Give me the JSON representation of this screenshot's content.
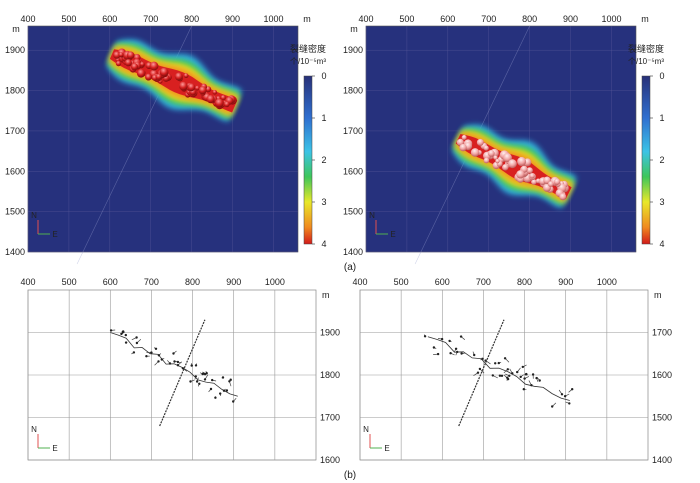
{
  "figure": {
    "caption_a": "(a)",
    "caption_b": "(b)",
    "compass_n": "N",
    "compass_e": "E",
    "unit": "m",
    "colorbar_title_line1": "裂缝密度",
    "colorbar_title_line2": "个/10⁻⁵m³"
  },
  "colors": {
    "background_field": "#26317d",
    "cluster_core": "#d82020",
    "cluster_core_light": "#f2b0b0",
    "halo_yellow": "#f4e21a",
    "halo_green": "#35c45a",
    "halo_cyan": "#35b8e8",
    "grid_line": "#5a5a9a",
    "trace_line": "#333333"
  },
  "chart_data": [
    {
      "id": "a-left",
      "type": "heatmap",
      "x_ticks": [
        "400",
        "500",
        "600",
        "700",
        "800",
        "900",
        "1000"
      ],
      "y_ticks": [
        "1900",
        "1800",
        "1700",
        "1600",
        "1500",
        "1400"
      ],
      "xlim": [
        400,
        1060
      ],
      "ylim": [
        1400,
        1960
      ],
      "colorbar": {
        "ticks": [
          "0",
          "1",
          "2",
          "3",
          "4"
        ],
        "range": [
          0,
          4
        ]
      },
      "cluster": {
        "from": [
          605,
          1890
        ],
        "to": [
          905,
          1760
        ],
        "peak_density": 4
      }
    },
    {
      "id": "a-right",
      "type": "heatmap",
      "x_ticks": [
        "400",
        "500",
        "600",
        "700",
        "800",
        "900",
        "1000"
      ],
      "y_ticks": [
        "1900",
        "1800",
        "1700",
        "1600",
        "1500",
        "1400"
      ],
      "xlim": [
        400,
        1060
      ],
      "ylim": [
        1400,
        1960
      ],
      "colorbar": {
        "ticks": [
          "0",
          "1",
          "2",
          "3",
          "4"
        ],
        "range": [
          0,
          4
        ]
      },
      "cluster": {
        "from": [
          625,
          1680
        ],
        "to": [
          895,
          1545
        ],
        "peak_density": 4
      }
    },
    {
      "id": "b-left",
      "type": "scatter",
      "x_ticks": [
        "400",
        "500",
        "600",
        "700",
        "800",
        "900",
        "1000"
      ],
      "y_ticks": [
        "1900",
        "1800",
        "1700",
        "1600"
      ],
      "xlim": [
        400,
        1100
      ],
      "ylim": [
        1600,
        2000
      ],
      "trend_line": {
        "from": [
          600,
          1900
        ],
        "to": [
          910,
          1750
        ]
      },
      "well_line": {
        "from": [
          720,
          1680
        ],
        "to": [
          830,
          1930
        ]
      }
    },
    {
      "id": "b-right",
      "type": "scatter",
      "x_ticks": [
        "400",
        "500",
        "600",
        "700",
        "800",
        "900",
        "1000"
      ],
      "y_ticks": [
        "1700",
        "1600",
        "1500",
        "1400"
      ],
      "xlim": [
        400,
        1100
      ],
      "ylim": [
        1400,
        1800
      ],
      "trend_line": {
        "from": [
          565,
          1690
        ],
        "to": [
          910,
          1540
        ]
      },
      "well_line": {
        "from": [
          640,
          1480
        ],
        "to": [
          750,
          1730
        ]
      }
    }
  ]
}
